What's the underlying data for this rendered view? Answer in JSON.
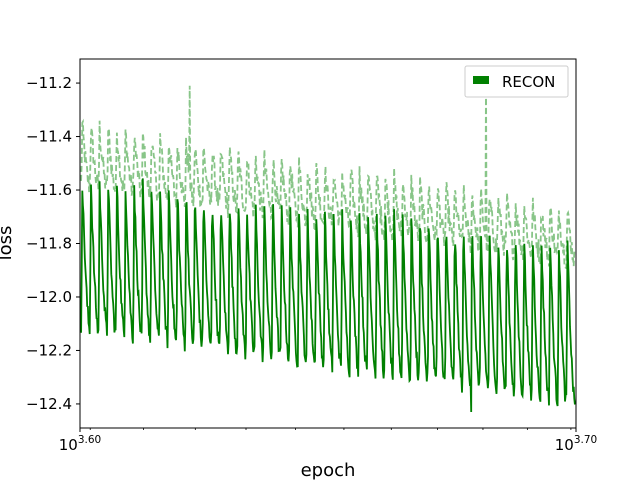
{
  "chart_data": {
    "type": "line",
    "title": "",
    "xlabel": "epoch",
    "ylabel": "loss",
    "xscale": "log",
    "xlim": [
      3981.07,
      5011.87
    ],
    "ylim": [
      -12.49,
      -11.11
    ],
    "x_ticks": [
      {
        "value": 3981.07,
        "base": "10",
        "exp": "3.60"
      },
      {
        "value": 5011.87,
        "base": "10",
        "exp": "3.70"
      }
    ],
    "y_ticks": [
      -11.2,
      -11.4,
      -11.6,
      -11.8,
      -12.0,
      -12.2,
      -12.4
    ],
    "y_tick_labels": [
      "−11.2",
      "−11.4",
      "−11.6",
      "−11.8",
      "−12.0",
      "−12.2",
      "−12.4"
    ],
    "grid": false,
    "legend": {
      "position": "top-right",
      "entries": [
        "RECON"
      ]
    },
    "series": [
      {
        "name": "RECON",
        "color": "#008000",
        "style": "solid",
        "approx_cycles": 57,
        "peak_start": -11.55,
        "peak_end": -11.78,
        "trough_start": -12.12,
        "trough_end": -12.4,
        "notable_min": -12.43
      },
      {
        "color": "#88c588",
        "style": "dashed",
        "approx_cycles": 57,
        "peak_start": -11.35,
        "peak_end": -11.68,
        "trough_start": -11.58,
        "trough_end": -11.86,
        "notable_max": [
          -11.17,
          -11.21
        ]
      }
    ]
  }
}
